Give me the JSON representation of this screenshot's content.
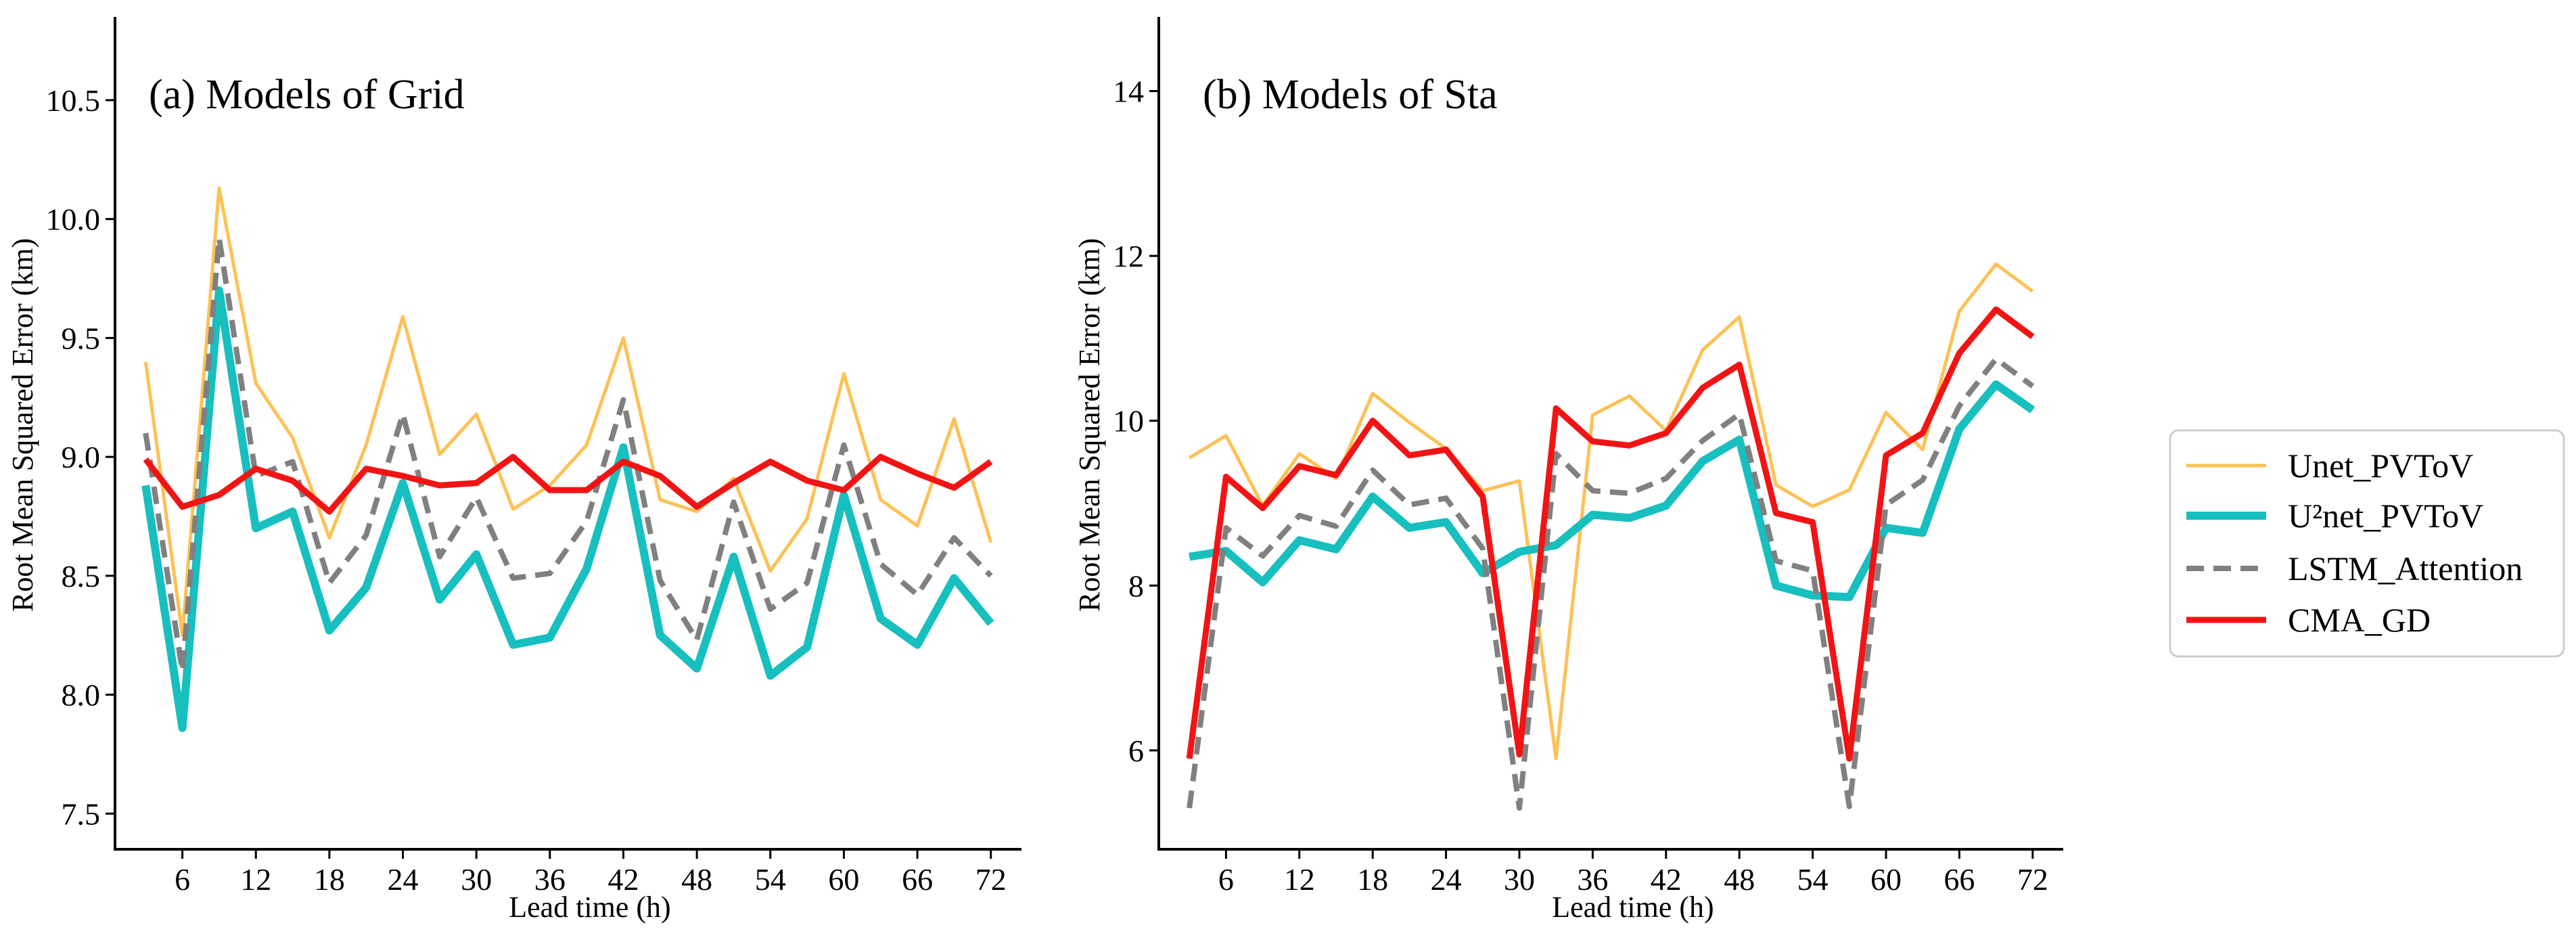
{
  "chart_data": [
    {
      "type": "line",
      "title": "(a) Models of Grid",
      "xlabel": "Lead time (h)",
      "ylabel": "Root Mean Squared Error (km)",
      "xlim": [
        0.5,
        74.5
      ],
      "ylim": [
        7.35,
        10.85
      ],
      "xticks": [
        6,
        12,
        18,
        24,
        30,
        36,
        42,
        48,
        54,
        60,
        66,
        72
      ],
      "yticks": [
        7.5,
        8.0,
        8.5,
        9.0,
        9.5,
        10.0,
        10.5
      ],
      "x": [
        3,
        6,
        9,
        12,
        15,
        18,
        21,
        24,
        27,
        30,
        33,
        36,
        39,
        42,
        45,
        48,
        51,
        54,
        57,
        60,
        63,
        66,
        69,
        72
      ],
      "series": [
        {
          "name": "Unet_PVToV",
          "color": "#FDC155",
          "values": [
            9.4,
            8.25,
            10.13,
            9.31,
            9.08,
            8.66,
            9.05,
            9.59,
            9.01,
            9.18,
            8.78,
            8.88,
            9.05,
            9.5,
            8.82,
            8.77,
            8.91,
            8.52,
            8.74,
            9.35,
            8.82,
            8.71,
            9.16,
            8.64
          ]
        },
        {
          "name": "U²net_PVToV",
          "color": "#17BFBF",
          "values": [
            8.88,
            7.86,
            9.7,
            8.7,
            8.77,
            8.27,
            8.45,
            8.89,
            8.4,
            8.59,
            8.21,
            8.24,
            8.53,
            9.04,
            8.25,
            8.11,
            8.58,
            8.08,
            8.2,
            8.84,
            8.32,
            8.21,
            8.49,
            8.3
          ]
        },
        {
          "name": "LSTM_Attention",
          "color": "#808080",
          "values": [
            9.1,
            8.1,
            9.92,
            8.92,
            8.98,
            8.47,
            8.67,
            9.18,
            8.58,
            8.83,
            8.49,
            8.51,
            8.73,
            9.24,
            8.48,
            8.23,
            8.81,
            8.36,
            8.47,
            9.05,
            8.55,
            8.42,
            8.66,
            8.5
          ]
        },
        {
          "name": "CMA_GD",
          "color": "#F21414",
          "values": [
            8.99,
            8.79,
            8.84,
            8.95,
            8.9,
            8.77,
            8.95,
            8.92,
            8.88,
            8.89,
            9.0,
            8.86,
            8.86,
            8.98,
            8.92,
            8.79,
            8.89,
            8.98,
            8.9,
            8.86,
            9.0,
            8.93,
            8.87,
            8.98
          ]
        }
      ]
    },
    {
      "type": "line",
      "title": "(b) Models of Sta",
      "xlabel": "Lead time (h)",
      "ylabel": "Root Mean Squared Error (km)",
      "xlim": [
        0.5,
        74.5
      ],
      "ylim": [
        4.8,
        14.9
      ],
      "xticks": [
        6,
        12,
        18,
        24,
        30,
        36,
        42,
        48,
        54,
        60,
        66,
        72
      ],
      "yticks": [
        6,
        8,
        10,
        12,
        14
      ],
      "x": [
        3,
        6,
        9,
        12,
        15,
        18,
        21,
        24,
        27,
        30,
        33,
        36,
        39,
        42,
        45,
        48,
        51,
        54,
        57,
        60,
        63,
        66,
        69,
        72
      ],
      "series": [
        {
          "name": "Unet_PVToV",
          "color": "#FDC155",
          "values": [
            9.55,
            9.82,
            8.97,
            9.6,
            9.3,
            10.33,
            9.98,
            9.66,
            9.15,
            9.27,
            5.9,
            10.07,
            10.3,
            9.88,
            10.86,
            11.26,
            9.22,
            8.96,
            9.16,
            10.1,
            9.65,
            11.33,
            11.9,
            11.57
          ]
        },
        {
          "name": "U²net_PVToV",
          "color": "#17BFBF",
          "values": [
            8.35,
            8.42,
            8.04,
            8.55,
            8.44,
            9.08,
            8.7,
            8.77,
            8.15,
            8.41,
            8.49,
            8.86,
            8.82,
            8.97,
            9.51,
            9.77,
            8.0,
            7.88,
            7.86,
            8.7,
            8.64,
            9.9,
            10.44,
            10.13
          ]
        },
        {
          "name": "LSTM_Attention",
          "color": "#808080",
          "values": [
            5.3,
            8.7,
            8.36,
            8.85,
            8.72,
            9.4,
            8.98,
            9.06,
            8.45,
            5.3,
            9.6,
            9.15,
            9.12,
            9.3,
            9.76,
            10.08,
            8.3,
            8.18,
            5.32,
            8.98,
            9.28,
            10.18,
            10.75,
            10.42
          ]
        },
        {
          "name": "CMA_GD",
          "color": "#F21414",
          "values": [
            5.9,
            9.32,
            8.94,
            9.45,
            9.34,
            10.0,
            9.58,
            9.65,
            9.08,
            5.95,
            10.15,
            9.75,
            9.7,
            9.85,
            10.4,
            10.68,
            8.88,
            8.77,
            5.9,
            9.58,
            9.85,
            10.82,
            11.35,
            11.02
          ]
        }
      ]
    }
  ],
  "legend": {
    "position": "right",
    "items": [
      {
        "label": "Unet_PVToV",
        "color": "#FDC155"
      },
      {
        "label": "U²net_PVToV",
        "color": "#17BFBF"
      },
      {
        "label": "LSTM_Attention",
        "color": "#808080"
      },
      {
        "label": "CMA_GD",
        "color": "#F21414"
      }
    ]
  }
}
